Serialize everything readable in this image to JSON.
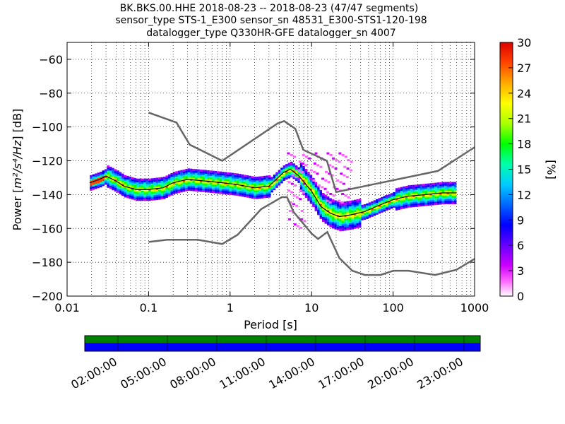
{
  "title": {
    "line1": "BK.BKS.00.HHE   2018-08-23 -- 2018-08-23  (47/47 segments)",
    "line2": "sensor_type STS-1_E300 sensor_sn 48531_E300-STS1-120-198",
    "line3": "datalogger_type Q330HR-GFE datalogger_sn 4007"
  },
  "chart_data": {
    "type": "heatmap",
    "xlabel": "Period [s]",
    "ylabel_prefix": "Power [",
    "ylabel_unit": "m²/s⁴/Hz",
    "ylabel_suffix": "] [dB]",
    "xscale": "log",
    "xlim": [
      0.01,
      1000
    ],
    "ylim": [
      -200,
      -50
    ],
    "x_ticks": [
      "0.01",
      "0.1",
      "1",
      "10",
      "100",
      "1000"
    ],
    "y_ticks": [
      "−60",
      "−80",
      "−100",
      "−120",
      "−140",
      "−160",
      "−180",
      "−200"
    ],
    "grid": true,
    "colorbar": {
      "label": "[%]",
      "min": 0,
      "max": 30,
      "ticks": [
        "0",
        "3",
        "6",
        "9",
        "12",
        "15",
        "18",
        "21",
        "24",
        "27",
        "30"
      ]
    },
    "noise_model_high": {
      "x": [
        0.1,
        0.22,
        0.32,
        0.8,
        3.8,
        4.6,
        6.3,
        7.9,
        15.4,
        20,
        354.8,
        1000
      ],
      "y": [
        -91.5,
        -97.4,
        -110.5,
        -120,
        -98,
        -96.5,
        -101,
        -113.5,
        -120,
        -138.5,
        -126,
        -112
      ]
    },
    "noise_model_low": {
      "x": [
        0.1,
        0.17,
        0.4,
        0.8,
        1.24,
        2.4,
        4.3,
        5,
        6,
        10,
        12,
        15.6,
        21.9,
        31.6,
        45,
        70,
        101,
        154,
        328,
        600,
        1000
      ],
      "y": [
        -168,
        -166.7,
        -166.7,
        -169.2,
        -163.7,
        -148.6,
        -141.5,
        -141.5,
        -150.2,
        -163,
        -166.2,
        -162.1,
        -177.5,
        -185,
        -187.5,
        -187.5,
        -185,
        -185,
        -187.5,
        -184.4,
        -178
      ]
    },
    "mode_curve": {
      "x": [
        0.019,
        0.025,
        0.03,
        0.04,
        0.05,
        0.07,
        0.1,
        0.15,
        0.2,
        0.3,
        0.5,
        0.8,
        1.2,
        2,
        3,
        4.5,
        5.5,
        7,
        10,
        13,
        17,
        22,
        30,
        45,
        70,
        100,
        150,
        250,
        400,
        600
      ],
      "y": [
        -133,
        -131,
        -129,
        -132,
        -135,
        -137,
        -137,
        -136,
        -133,
        -131,
        -132,
        -133,
        -134,
        -136,
        -135,
        -127,
        -125,
        -129,
        -138,
        -147,
        -151,
        -153,
        -152,
        -150,
        -146,
        -143,
        -141,
        -140,
        -139,
        -139
      ]
    },
    "time_axis": {
      "ticks": [
        "02:00:00",
        "05:00:00",
        "08:00:00",
        "11:00:00",
        "14:00:00",
        "17:00:00",
        "20:00:00",
        "23:00:00"
      ]
    },
    "colors": {
      "noise_model": "#666666",
      "mode": "#000000",
      "coverage_top": "#008000",
      "coverage_bottom": "#0000ff"
    }
  }
}
